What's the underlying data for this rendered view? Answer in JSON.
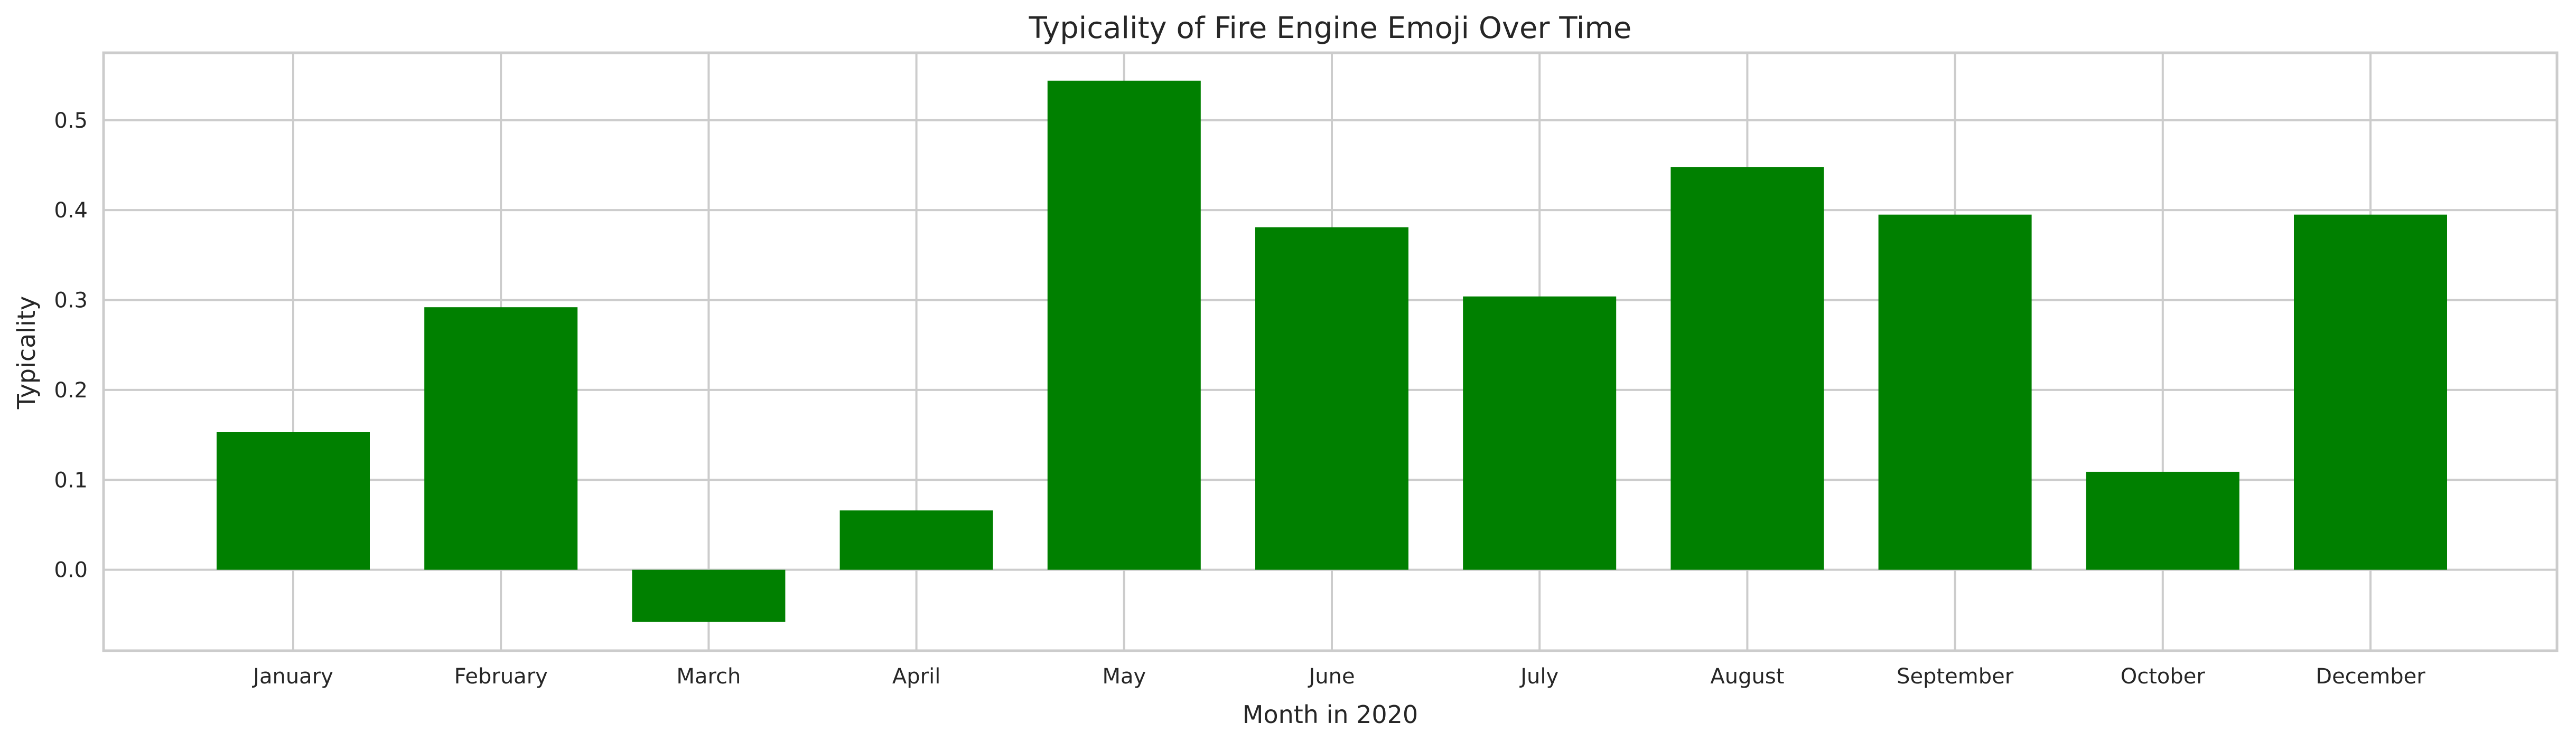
{
  "chart_data": {
    "type": "bar",
    "title": "Typicality of Fire Engine Emoji Over Time",
    "xlabel": "Month in 2020",
    "ylabel": "Typicality",
    "categories": [
      "January",
      "February",
      "March",
      "April",
      "May",
      "June",
      "July",
      "August",
      "September",
      "October",
      "December"
    ],
    "values": [
      0.153,
      0.292,
      -0.058,
      0.066,
      0.544,
      0.381,
      0.304,
      0.448,
      0.395,
      0.109,
      0.395
    ],
    "ylim": [
      -0.09,
      0.575
    ],
    "yticks": [
      0.0,
      0.1,
      0.2,
      0.3,
      0.4,
      0.5
    ],
    "ytick_labels": [
      "0.0",
      "0.1",
      "0.2",
      "0.3",
      "0.4",
      "0.5"
    ],
    "bar_color": "#008000",
    "grid": true,
    "legend": "none"
  }
}
